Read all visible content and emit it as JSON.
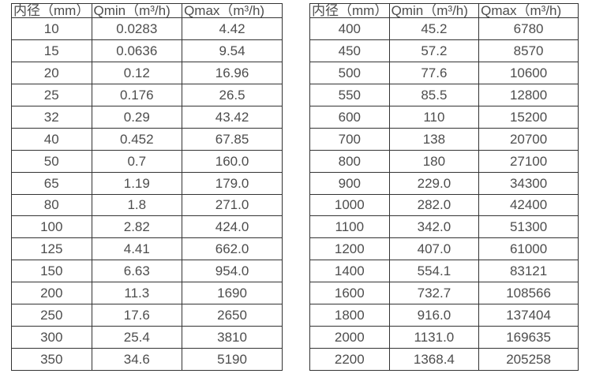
{
  "colors": {
    "background": "#ffffff",
    "border": "#333333",
    "text": "#4d4d4d"
  },
  "tables": [
    {
      "name": "small-diameter-flow-table",
      "headers": [
        "内径（mm）",
        "Qmin（m³/h)",
        "Qmax（m³/h)"
      ],
      "rows": [
        [
          "10",
          "0.0283",
          "4.42"
        ],
        [
          "15",
          "0.0636",
          "9.54"
        ],
        [
          "20",
          "0.12",
          "16.96"
        ],
        [
          "25",
          "0.176",
          "26.5"
        ],
        [
          "32",
          "0.29",
          "43.42"
        ],
        [
          "40",
          "0.452",
          "67.85"
        ],
        [
          "50",
          "0.7",
          "160.0"
        ],
        [
          "65",
          "1.19",
          "179.0"
        ],
        [
          "80",
          "1.8",
          "271.0"
        ],
        [
          "100",
          "2.82",
          "424.0"
        ],
        [
          "125",
          "4.41",
          "662.0"
        ],
        [
          "150",
          "6.63",
          "954.0"
        ],
        [
          "200",
          "11.3",
          "1690"
        ],
        [
          "250",
          "17.6",
          "2650"
        ],
        [
          "300",
          "25.4",
          "3810"
        ],
        [
          "350",
          "34.6",
          "5190"
        ]
      ]
    },
    {
      "name": "large-diameter-flow-table",
      "headers": [
        "内径（mm）",
        "Qmin（m³/h)",
        "Qmax（m³/h)"
      ],
      "rows": [
        [
          "400",
          "45.2",
          "6780"
        ],
        [
          "450",
          "57.2",
          "8570"
        ],
        [
          "500",
          "77.6",
          "10600"
        ],
        [
          "550",
          "85.5",
          "12800"
        ],
        [
          "600",
          "110",
          "15200"
        ],
        [
          "700",
          "138",
          "20700"
        ],
        [
          "800",
          "180",
          "27100"
        ],
        [
          "900",
          "229.0",
          "34300"
        ],
        [
          "1000",
          "282.0",
          "42400"
        ],
        [
          "1100",
          "342.0",
          "51300"
        ],
        [
          "1200",
          "407.0",
          "61000"
        ],
        [
          "1400",
          "554.1",
          "83121"
        ],
        [
          "1600",
          "732.7",
          "108566"
        ],
        [
          "1800",
          "916.0",
          "137404"
        ],
        [
          "2000",
          "1131.0",
          "169635"
        ],
        [
          "2200",
          "1368.4",
          "205258"
        ]
      ]
    }
  ]
}
